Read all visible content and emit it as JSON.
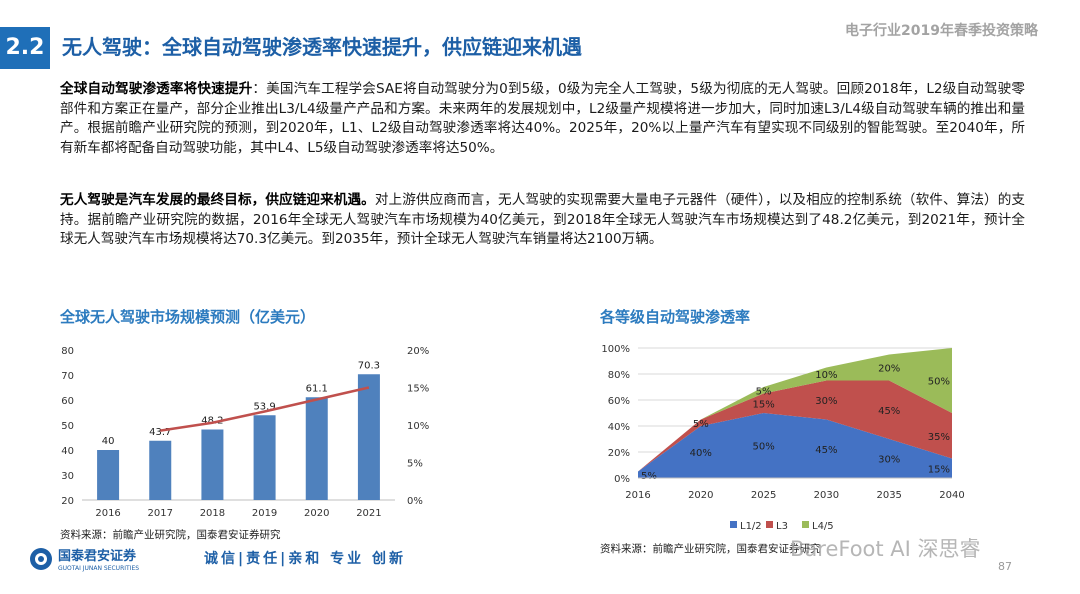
{
  "header": {
    "section_number": "2.2",
    "title": "无人驾驶：全球自动驾驶渗透率快速提升，供应链迎来机遇",
    "report_name": "电子行业2019年春季投资策略"
  },
  "paragraphs": [
    {
      "lead": "全球自动驾驶渗透率将快速提升",
      "body": "：美国汽车工程学会SAE将自动驾驶分为0到5级，0级为完全人工驾驶，5级为彻底的无人驾驶。回顾2018年，L2级自动驾驶零部件和方案正在量产，部分企业推出L3/L4级量产产品和方案。未来两年的发展规划中，L2级量产规模将进一步加大，同时加速L3/L4级自动驾驶车辆的推出和量产。根据前瞻产业研究院的预测，到2020年，L1、L2级自动驾驶渗透率将达40%。2025年，20%以上量产汽车有望实现不同级别的智能驾驶。至2040年，所有新车都将配备自动驾驶功能，其中L4、L5级自动驾驶渗透率将达50%。"
    },
    {
      "lead": "无人驾驶是汽车发展的最终目标，供应链迎来机遇。",
      "body": "对上游供应商而言，无人驾驶的实现需要大量电子元器件（硬件），以及相应的控制系统（软件、算法）的支持。据前瞻产业研究院的数据，2016年全球无人驾驶汽车市场规模为40亿美元，到2018年全球无人驾驶汽车市场规模达到了48.2亿美元，到2021年，预计全球无人驾驶汽车市场规模将达70.3亿美元。到2035年，预计全球无人驾驶汽车销量将达2100万辆。"
    }
  ],
  "chart_data": [
    {
      "type": "bar",
      "title": "全球无人驾驶市场规模预测（亿美元）",
      "categories": [
        "2016",
        "2017",
        "2018",
        "2019",
        "2020",
        "2021"
      ],
      "series": [
        {
          "values": [
            40,
            43.7,
            48.2,
            53.9,
            61.1,
            70.3
          ],
          "color": "#4f81bd"
        },
        {
          "type": "line",
          "axis": "right",
          "values": [
            null,
            9.25,
            10.3,
            11.8,
            13.4,
            15.0
          ],
          "color": "#c0504d"
        }
      ],
      "data_labels": [
        "40",
        "43.7",
        "48.2",
        "53.9",
        "61.1",
        "70.3"
      ],
      "left_ylim": [
        20,
        80
      ],
      "left_ticks": [
        "20",
        "30",
        "40",
        "50",
        "60",
        "70",
        "80"
      ],
      "right_ylim": [
        0,
        20
      ],
      "right_ticks": [
        "0%",
        "5%",
        "10%",
        "15%",
        "20%"
      ],
      "grid": false,
      "source": "资料来源：前瞻产业研究院，国泰君安证券研究"
    },
    {
      "type": "area",
      "stacked": true,
      "title": "各等级自动驾驶渗透率",
      "x": [
        "2016",
        "2020",
        "2025",
        "2030",
        "2035",
        "2040"
      ],
      "series": [
        {
          "name": "L1/2",
          "values": [
            5,
            40,
            50,
            45,
            30,
            15
          ],
          "labels": [
            "5%",
            "40%",
            "50%",
            "45%",
            "30%",
            "15%"
          ],
          "color": "#4472c4"
        },
        {
          "name": "L3",
          "values": [
            0,
            5,
            15,
            30,
            45,
            35
          ],
          "labels": [
            "",
            "5%",
            "15%",
            "30%",
            "45%",
            "35%"
          ],
          "color": "#c0504d"
        },
        {
          "name": "L4/5",
          "values": [
            0,
            0,
            5,
            10,
            20,
            50
          ],
          "labels": [
            "",
            "",
            "5%",
            "10%",
            "20%",
            "50%"
          ],
          "color": "#9bbb59"
        }
      ],
      "ylim": [
        0,
        100
      ],
      "y_ticks": [
        "0%",
        "20%",
        "40%",
        "60%",
        "80%",
        "100%"
      ],
      "grid": true,
      "legend": "bottom",
      "legend_labels": [
        "L1/2",
        "L3",
        "L4/5"
      ],
      "source": "资料来源：前瞻产业研究院，国泰君安证券研究"
    }
  ],
  "footer": {
    "logo_cn": "国泰君安证券",
    "logo_en": "GUOTAI JUNAN SECURITIES",
    "slogan": "诚信|责任|亲和 专业 创新",
    "watermark": "BareFoot AI 深思睿",
    "page_number": "87"
  }
}
